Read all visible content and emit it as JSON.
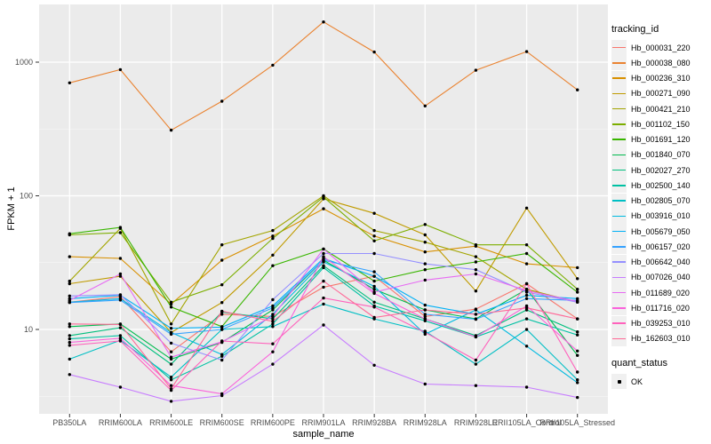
{
  "chart_data": {
    "type": "line",
    "title": "",
    "xlabel": "sample_name",
    "ylabel": "FPKM + 1",
    "y_scale": "log10",
    "y_ticks": [
      "10",
      "100",
      "1000"
    ],
    "y_minor_ticks": [
      3.162,
      31.62,
      316.2
    ],
    "ylim": [
      2.3,
      2700
    ],
    "grid": "white major+minor on gray panel",
    "legend_title": "tracking_id",
    "legend_position": "right",
    "point_legend": {
      "title": "quant_status",
      "items": [
        {
          "label": "OK",
          "marker": "black-square"
        }
      ]
    },
    "categories": [
      "PB350LA",
      "RRIM600LA",
      "RRIM600LE",
      "RRIM600SE",
      "RRIM600PE",
      "RRIM901LA",
      "RRIM928BA",
      "RRIM928LA",
      "RRIM928LE",
      "RRII105LA_Control",
      "RRII105LA_Stressed"
    ],
    "series": [
      {
        "name": "Hb_000031_220",
        "color": "#F8766D",
        "values": [
          16,
          17.6,
          6.8,
          13,
          12.5,
          20.7,
          25,
          12.5,
          14.2,
          22,
          12
        ]
      },
      {
        "name": "Hb_000038_080",
        "color": "#EA8331",
        "values": [
          700,
          880,
          310,
          510,
          950,
          2000,
          1190,
          470,
          870,
          1200,
          620
        ]
      },
      {
        "name": "Hb_000236_310",
        "color": "#D89000",
        "values": [
          35,
          34,
          15.5,
          33,
          50,
          80,
          50,
          38,
          42,
          31,
          29
        ]
      },
      {
        "name": "Hb_000271_090",
        "color": "#C09B00",
        "values": [
          22,
          25,
          9.5,
          15.9,
          36,
          95,
          74,
          51,
          19.4,
          81,
          24
        ]
      },
      {
        "name": "Hb_000421_210",
        "color": "#A3A500",
        "values": [
          23,
          57,
          11,
          43,
          55,
          100,
          55,
          45,
          35,
          20,
          16
        ]
      },
      {
        "name": "Hb_001102_150",
        "color": "#7CAE00",
        "values": [
          51,
          53,
          16,
          21.6,
          48,
          98,
          46,
          61,
          43,
          43,
          20
        ]
      },
      {
        "name": "Hb_001691_120",
        "color": "#39B600",
        "values": [
          52,
          58,
          14.7,
          10.5,
          30,
          40,
          23,
          28,
          32,
          37,
          19
        ]
      },
      {
        "name": "Hb_001840_070",
        "color": "#00BB4E",
        "values": [
          10.5,
          11,
          6,
          8,
          14,
          33,
          20,
          14,
          12,
          20,
          6.4
        ]
      },
      {
        "name": "Hb_002027_270",
        "color": "#00BF7D",
        "values": [
          9,
          10.3,
          5.5,
          13.5,
          12,
          30,
          16,
          12,
          9,
          14,
          9.6
        ]
      },
      {
        "name": "Hb_002500_140",
        "color": "#00C1A3",
        "values": [
          8.5,
          9,
          4.2,
          6.3,
          11,
          29,
          15,
          11.6,
          8.8,
          12,
          9.1
        ]
      },
      {
        "name": "Hb_002805_070",
        "color": "#00BFC4",
        "values": [
          6,
          8.3,
          4.4,
          10,
          10.5,
          15.5,
          12,
          9.7,
          5.5,
          10,
          4.2
        ]
      },
      {
        "name": "Hb_003916_010",
        "color": "#00BAE0",
        "values": [
          16,
          17,
          9.5,
          6.5,
          13,
          32,
          21,
          9.2,
          14,
          7.5,
          4.0
        ]
      },
      {
        "name": "Hb_005679_050",
        "color": "#00B0F6",
        "values": [
          17,
          18,
          10.2,
          10.4,
          15,
          34,
          25,
          15.2,
          13,
          18,
          17
        ]
      },
      {
        "name": "Hb_006157_020",
        "color": "#35A2FF",
        "values": [
          15.9,
          16.6,
          9.2,
          10,
          14.5,
          33,
          27,
          13,
          11.9,
          17,
          16.5
        ]
      },
      {
        "name": "Hb_006642_040",
        "color": "#9590FF",
        "values": [
          17.8,
          18.2,
          7.9,
          5.9,
          16.7,
          37,
          37,
          31,
          28,
          19,
          16
        ]
      },
      {
        "name": "Hb_007026_040",
        "color": "#C77CFF",
        "values": [
          4.6,
          3.7,
          2.9,
          3.2,
          5.5,
          10.8,
          5.4,
          3.9,
          3.8,
          3.7,
          3.1
        ]
      },
      {
        "name": "Hb_011689_020",
        "color": "#E76BF3",
        "values": [
          16.5,
          26,
          6.2,
          8.1,
          12.5,
          40,
          19,
          23.4,
          26,
          19.5,
          16.2
        ]
      },
      {
        "name": "Hb_011716_020",
        "color": "#FA62DB",
        "values": [
          8,
          8.6,
          3.8,
          3.3,
          6.8,
          35,
          18.6,
          12,
          8.8,
          15,
          6.9
        ]
      },
      {
        "name": "Hb_039253_010",
        "color": "#FF62BC",
        "values": [
          7.6,
          8.2,
          3.5,
          8.2,
          7.8,
          17.2,
          14.7,
          9.5,
          5.9,
          22,
          4.8
        ]
      },
      {
        "name": "Hb_162603_010",
        "color": "#FF6A98",
        "values": [
          11,
          10.9,
          3.6,
          13.7,
          11.5,
          23,
          12.3,
          14,
          13,
          14.5,
          12
        ]
      }
    ]
  },
  "colors": {
    "page_bg": "#FFFFFF",
    "panel_bg": "#EBEBEB",
    "grid_major": "#FFFFFF",
    "grid_minor": "#FFFFFF",
    "tick_mark": "#333333",
    "tick_label": "#4D4D4D",
    "axis_title": "#000000",
    "point": "#000000",
    "legend_key_bg": "#F0F0F0"
  }
}
